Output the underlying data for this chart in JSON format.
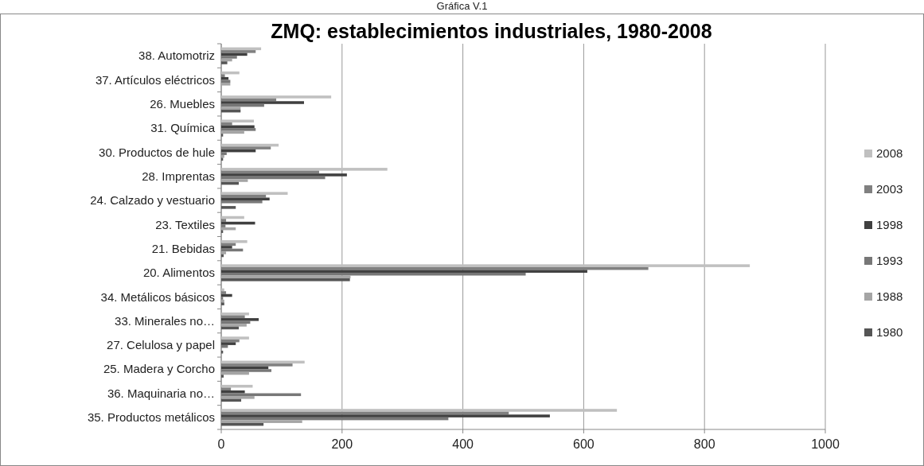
{
  "chart_data": {
    "type": "bar",
    "orientation": "horizontal",
    "title": "ZMQ: establecimientos industriales, 1980-2008",
    "annotations": [
      "Gráfica V.1"
    ],
    "categories": [
      "38. Automotriz",
      "37. Artículos eléctricos",
      "26. Muebles",
      "31. Química",
      "30. Productos de hule",
      "28. Imprentas",
      "24. Calzado y vestuario",
      "23. Textiles",
      "21. Bebidas",
      "20. Alimentos",
      "34. Metálicos básicos",
      "33. Minerales no…",
      "27. Celulosa y papel",
      "25. Madera y Corcho",
      "36. Maquinaria no…",
      "35. Productos metálicos"
    ],
    "series": [
      {
        "name": "2008",
        "color": "#c0c0c0",
        "values": [
          66,
          30,
          182,
          54,
          95,
          275,
          110,
          38,
          43,
          875,
          5,
          46,
          46,
          138,
          52,
          655
        ]
      },
      {
        "name": "2003",
        "color": "#808080",
        "values": [
          57,
          6,
          91,
          18,
          82,
          162,
          74,
          8,
          24,
          707,
          8,
          39,
          30,
          118,
          16,
          476
        ]
      },
      {
        "name": "1998",
        "color": "#404040",
        "values": [
          43,
          12,
          137,
          55,
          57,
          208,
          80,
          56,
          18,
          606,
          18,
          62,
          24,
          78,
          39,
          544
        ]
      },
      {
        "name": "1993",
        "color": "#777777",
        "values": [
          26,
          15,
          71,
          57,
          9,
          172,
          68,
          7,
          36,
          504,
          3,
          48,
          11,
          83,
          132,
          376
        ]
      },
      {
        "name": "1988",
        "color": "#a5a5a5",
        "values": [
          18,
          15,
          32,
          38,
          5,
          44,
          0,
          24,
          8,
          214,
          5,
          42,
          0,
          46,
          55,
          134
        ]
      },
      {
        "name": "1980",
        "color": "#555555",
        "values": [
          10,
          0,
          32,
          3,
          3,
          29,
          24,
          3,
          4,
          213,
          5,
          29,
          3,
          4,
          33,
          70
        ]
      }
    ],
    "xlim": [
      0,
      1000
    ],
    "xticks": [
      0,
      200,
      400,
      600,
      800,
      1000
    ],
    "grid": "x",
    "legend": "right"
  }
}
